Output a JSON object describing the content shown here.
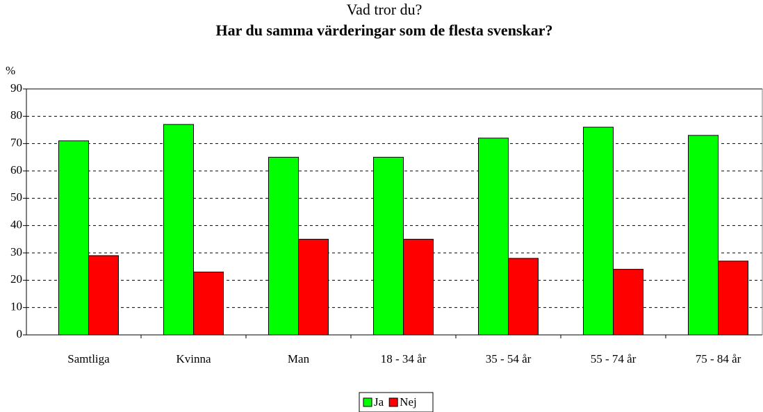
{
  "chart_data": {
    "type": "bar",
    "title": "Vad tror du?",
    "subtitle": "Har du samma värderingar som de flesta svenskar?",
    "y_label": "%",
    "categories": [
      "Samtliga",
      "Kvinna",
      "Man",
      "18 - 34 år",
      "35 - 54 år",
      "55 - 74 år",
      "75 - 84 år"
    ],
    "series": [
      {
        "name": "Ja",
        "color": "#00ff00",
        "values": [
          71,
          77,
          65,
          65,
          72,
          76,
          73
        ]
      },
      {
        "name": "Nej",
        "color": "#ff0000",
        "values": [
          29,
          23,
          35,
          35,
          28,
          24,
          27
        ]
      }
    ],
    "ylim": [
      0,
      90
    ],
    "yticks": [
      0,
      10,
      20,
      30,
      40,
      50,
      60,
      70,
      80,
      90
    ],
    "grid": true,
    "legend": "bottom"
  }
}
